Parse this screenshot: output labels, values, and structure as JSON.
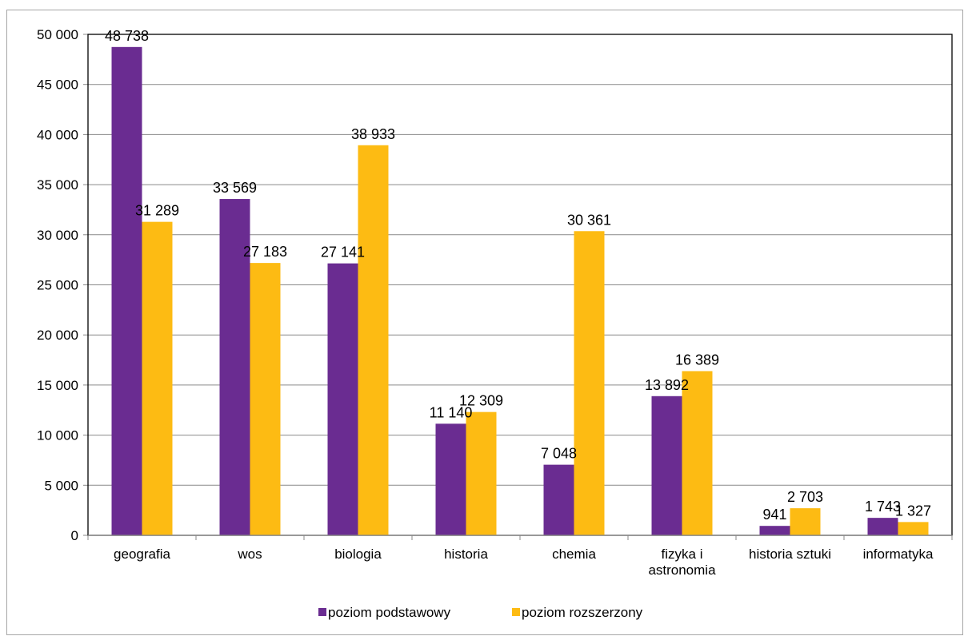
{
  "chart_data": {
    "type": "bar",
    "categories": [
      [
        "geografia"
      ],
      [
        "wos"
      ],
      [
        "biologia"
      ],
      [
        "historia"
      ],
      [
        "chemia"
      ],
      [
        "fizyka i",
        "astronomia"
      ],
      [
        "historia sztuki"
      ],
      [
        "informatyka"
      ]
    ],
    "series": [
      {
        "name": "poziom podstawowy",
        "color": "#6a2c91",
        "values": [
          48738,
          33569,
          27141,
          11140,
          7048,
          13892,
          941,
          1743
        ],
        "labels": [
          "48 738",
          "33 569",
          "27 141",
          "11 140",
          "7 048",
          "13 892",
          "941",
          "1 743"
        ]
      },
      {
        "name": "poziom rozszerzony",
        "color": "#fdbb13",
        "values": [
          31289,
          27183,
          38933,
          12309,
          30361,
          16389,
          2703,
          1327
        ],
        "labels": [
          "31 289",
          "27 183",
          "38 933",
          "12 309",
          "30 361",
          "16 389",
          "2 703",
          "1 327"
        ]
      }
    ],
    "ylim": [
      0,
      50000
    ],
    "yticks": [
      0,
      5000,
      10000,
      15000,
      20000,
      25000,
      30000,
      35000,
      40000,
      45000,
      50000
    ],
    "ytick_labels": [
      "0",
      "5 000",
      "10 000",
      "15 000",
      "20 000",
      "25 000",
      "30 000",
      "35 000",
      "40 000",
      "45 000",
      "50 000"
    ],
    "grid": true,
    "legend": "bottom"
  }
}
